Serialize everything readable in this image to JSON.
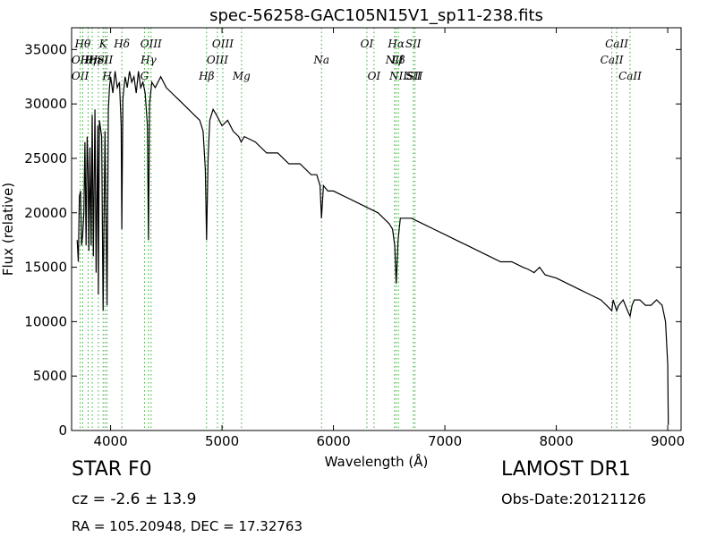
{
  "chart_data": {
    "type": "line",
    "title": "spec-56258-GAC105N15V1_sp11-238.fits",
    "xlabel": "Wavelength (Å)",
    "ylabel": "Flux (relative)",
    "xlim": [
      3650,
      9120
    ],
    "ylim": [
      0,
      37000
    ],
    "xticks": [
      4000,
      5000,
      6000,
      7000,
      8000,
      9000
    ],
    "yticks": [
      0,
      5000,
      10000,
      15000,
      20000,
      25000,
      30000,
      35000
    ],
    "grid": false,
    "line_color": "#000000",
    "marker_color": "#33aa33",
    "series": [
      {
        "x": [
          3700,
          3710,
          3720,
          3730,
          3740,
          3750,
          3760,
          3770,
          3780,
          3790,
          3798,
          3805,
          3815,
          3825,
          3835,
          3845,
          3860,
          3870,
          3885,
          3890,
          3900,
          3920,
          3933,
          3950,
          3968,
          3980,
          3990,
          4000,
          4020,
          4040,
          4060,
          4080,
          4095,
          4101,
          4110,
          4130,
          4150,
          4170,
          4190,
          4210,
          4230,
          4250,
          4270,
          4290,
          4310,
          4330,
          4340,
          4350,
          4370,
          4400,
          4450,
          4500,
          4550,
          4600,
          4650,
          4700,
          4750,
          4800,
          4830,
          4850,
          4861,
          4875,
          4890,
          4920,
          4950,
          5000,
          5050,
          5100,
          5150,
          5172,
          5200,
          5300,
          5400,
          5500,
          5600,
          5700,
          5800,
          5850,
          5880,
          5893,
          5910,
          5950,
          6000,
          6100,
          6200,
          6300,
          6400,
          6450,
          6500,
          6530,
          6550,
          6563,
          6580,
          6600,
          6650,
          6700,
          6800,
          6900,
          7000,
          7100,
          7200,
          7300,
          7400,
          7500,
          7600,
          7700,
          7750,
          7800,
          7850,
          7900,
          8000,
          8100,
          8200,
          8300,
          8400,
          8450,
          8498,
          8510,
          8542,
          8560,
          8600,
          8640,
          8662,
          8680,
          8700,
          8750,
          8800,
          8850,
          8900,
          8950,
          8980,
          9000,
          9005
        ],
        "y": [
          17500,
          15500,
          21500,
          22000,
          17000,
          18000,
          20000,
          26500,
          17000,
          27000,
          24000,
          16500,
          26000,
          17000,
          29000,
          16000,
          29500,
          14500,
          28000,
          12500,
          28500,
          27000,
          11000,
          27500,
          11500,
          29500,
          31500,
          32500,
          31000,
          33000,
          31500,
          32000,
          28000,
          18500,
          30500,
          32500,
          31500,
          33000,
          32000,
          32500,
          31000,
          33000,
          31500,
          32000,
          31000,
          28000,
          17500,
          30000,
          32000,
          31500,
          32500,
          31500,
          31000,
          30500,
          30000,
          29500,
          29000,
          28500,
          27500,
          24000,
          17500,
          25000,
          28500,
          29500,
          29000,
          28000,
          28500,
          27500,
          27000,
          26500,
          27000,
          26500,
          25500,
          25500,
          24500,
          24500,
          23500,
          23500,
          22500,
          19500,
          22500,
          22000,
          22000,
          21500,
          21000,
          20500,
          20000,
          19500,
          19000,
          18500,
          17000,
          13500,
          17500,
          19500,
          19500,
          19500,
          19000,
          18500,
          18000,
          17500,
          17000,
          16500,
          16000,
          15500,
          15500,
          15000,
          14800,
          14500,
          15000,
          14300,
          14000,
          13500,
          13000,
          12500,
          12000,
          11500,
          11000,
          12000,
          11000,
          11500,
          12000,
          11000,
          10500,
          11500,
          12000,
          12000,
          11500,
          11500,
          12000,
          11500,
          10000,
          6000,
          500
        ]
      }
    ],
    "line_markers": [
      {
        "x": 3727,
        "label": "OII",
        "row": 1
      },
      {
        "x": 3727,
        "label": "OII",
        "row": 2
      },
      {
        "x": 3750,
        "label": "Hθ",
        "row": 0
      },
      {
        "x": 3798,
        "label": "Hη",
        "row": 1
      },
      {
        "x": 3835,
        "label": "Hη",
        "row": 1
      },
      {
        "x": 3890,
        "label": "HeI",
        "row": 1
      },
      {
        "x": 3933,
        "label": "K",
        "row": 0
      },
      {
        "x": 3950,
        "label": "SII",
        "row": 1
      },
      {
        "x": 3968,
        "label": "H",
        "row": 2
      },
      {
        "x": 4101,
        "label": "Hδ",
        "row": 0
      },
      {
        "x": 4304,
        "label": "G",
        "row": 2
      },
      {
        "x": 4340,
        "label": "Hγ",
        "row": 1
      },
      {
        "x": 4363,
        "label": "OIII",
        "row": 0
      },
      {
        "x": 4861,
        "label": "Hβ",
        "row": 2
      },
      {
        "x": 4959,
        "label": "OIII",
        "row": 1
      },
      {
        "x": 5007,
        "label": "OIII",
        "row": 0
      },
      {
        "x": 5175,
        "label": "Mg",
        "row": 2
      },
      {
        "x": 5893,
        "label": "Na",
        "row": 1
      },
      {
        "x": 6300,
        "label": "OI",
        "row": 0
      },
      {
        "x": 6364,
        "label": "OI",
        "row": 2
      },
      {
        "x": 6548,
        "label": "NII",
        "row": 1
      },
      {
        "x": 6563,
        "label": "Hα",
        "row": 0
      },
      {
        "x": 6583,
        "label": "NII",
        "row": 2
      },
      {
        "x": 6583,
        "label": "Lβ",
        "row": 1
      },
      {
        "x": 6716,
        "label": "SII",
        "row": 0
      },
      {
        "x": 6716,
        "label": "SII",
        "row": 2
      },
      {
        "x": 6731,
        "label": "SII",
        "row": 2
      },
      {
        "x": 8498,
        "label": "CaII",
        "row": 1
      },
      {
        "x": 8542,
        "label": "CaII",
        "row": 0
      },
      {
        "x": 8662,
        "label": "CaII",
        "row": 2
      }
    ]
  },
  "info": {
    "class_label": "STAR   F0",
    "survey": "LAMOST DR1",
    "cz": "cz = -2.6 ± 13.9",
    "obs_date": "Obs-Date:20121126",
    "coords": "RA = 105.20948, DEC = 17.32763"
  }
}
